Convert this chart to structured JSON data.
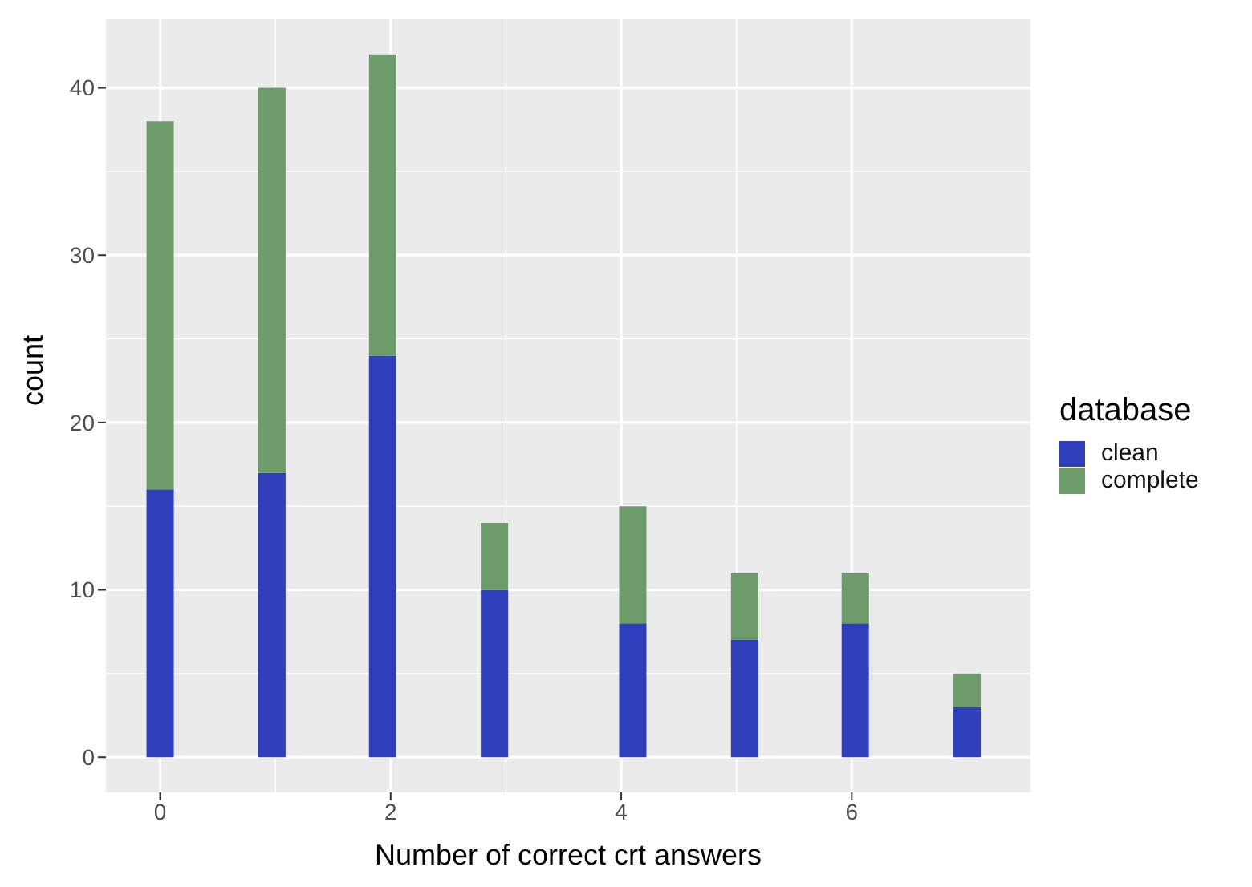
{
  "chart_data": {
    "type": "bar",
    "xlabel": "Number of correct crt answers",
    "ylabel": "count",
    "legend_title": "database",
    "legend": "right",
    "stacked": true,
    "grid": true,
    "x": [
      0,
      0.97,
      1.93,
      2.9,
      4.1,
      5.07,
      6.03,
      7
    ],
    "series": [
      {
        "name": "clean",
        "color": "#2e3fb9",
        "values": [
          16,
          17,
          24,
          10,
          8,
          7,
          8,
          3
        ]
      },
      {
        "name": "complete",
        "color": "#6e9b6a",
        "values": [
          22,
          23,
          18,
          4,
          7,
          4,
          3,
          2
        ]
      }
    ],
    "xlim": [
      -0.47,
      7.55
    ],
    "xticks": [
      0,
      2,
      4,
      6
    ],
    "ylim": [
      -2.1,
      44.1
    ],
    "yticks": [
      0,
      10,
      20,
      30,
      40
    ]
  }
}
